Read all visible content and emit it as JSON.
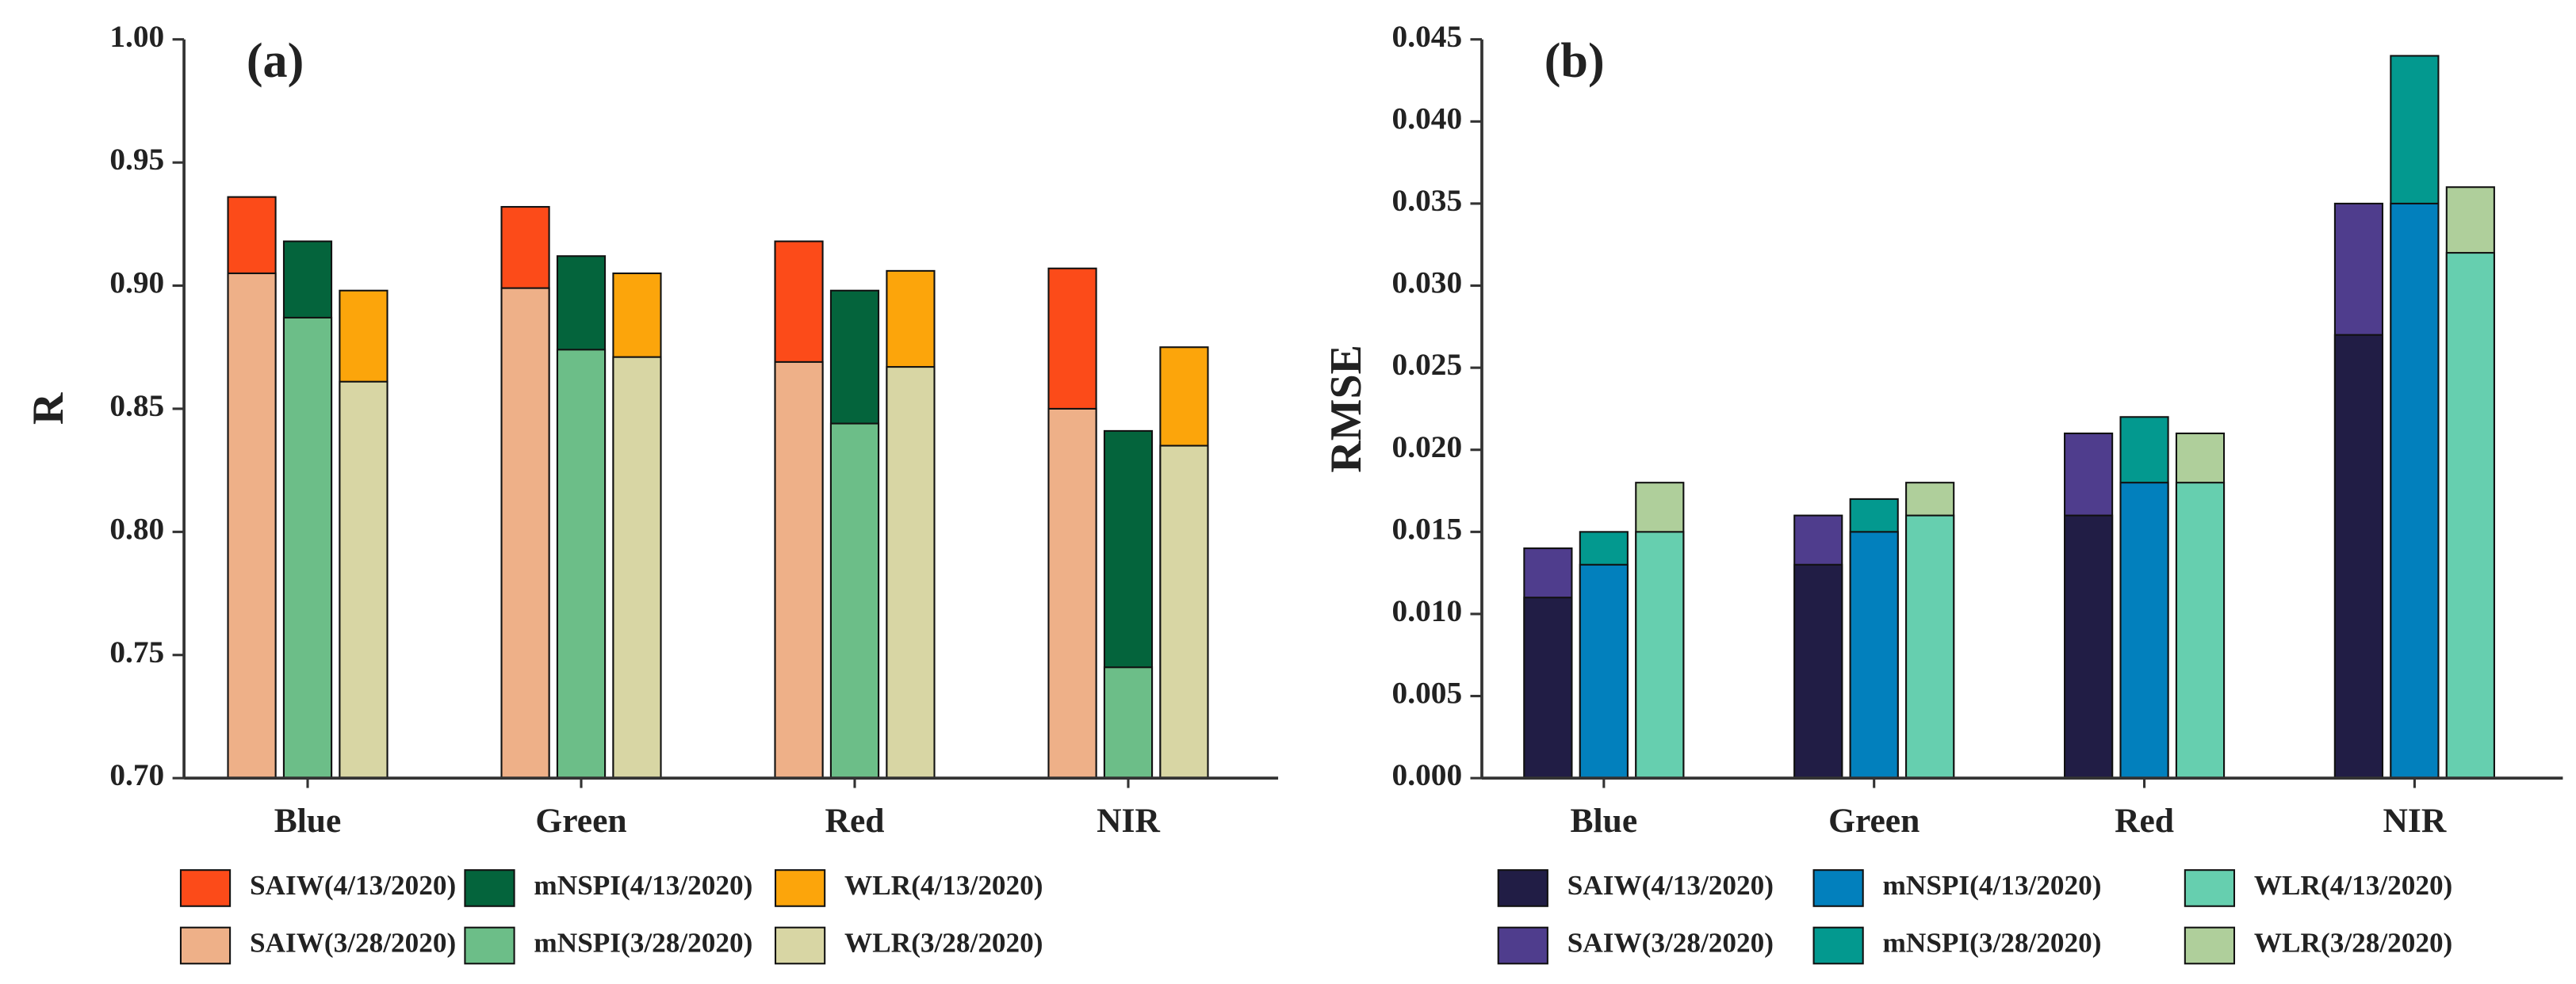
{
  "chart_data": [
    {
      "type": "bar",
      "annotation": "(a)",
      "y_label": "R",
      "categories": [
        "Blue",
        "Green",
        "Red",
        "NIR"
      ],
      "series": [
        {
          "name": "SAIW(4/13/2020)",
          "color": "#fc4b19",
          "values": [
            0.936,
            0.932,
            0.918,
            0.907
          ]
        },
        {
          "name": "SAIW(3/28/2020)",
          "color": "#eeb088",
          "values": [
            0.905,
            0.899,
            0.869,
            0.85
          ]
        },
        {
          "name": "mNSPI(4/13/2020)",
          "color": "#04643c",
          "values": [
            0.918,
            0.912,
            0.898,
            0.841
          ]
        },
        {
          "name": "mNSPI(3/28/2020)",
          "color": "#6cbe88",
          "values": [
            0.887,
            0.874,
            0.844,
            0.745
          ]
        },
        {
          "name": "WLR(4/13/2020)",
          "color": "#fca50b",
          "values": [
            0.898,
            0.905,
            0.906,
            0.875
          ]
        },
        {
          "name": "WLR(3/28/2020)",
          "color": "#d8d6a4",
          "values": [
            0.861,
            0.871,
            0.867,
            0.835
          ]
        }
      ],
      "ylim": [
        0.7,
        1.0
      ],
      "yticks": [
        {
          "value": 0.7,
          "label": "0.70"
        },
        0.75,
        {
          "value": 0.8,
          "label": "0.80"
        },
        0.85,
        {
          "value": 0.9,
          "label": "0.90"
        },
        0.95,
        {
          "value": 1.0,
          "label": "1.00"
        }
      ]
    },
    {
      "type": "bar",
      "annotation": "(b)",
      "y_label": "RMSE",
      "categories": [
        "Blue",
        "Green",
        "Red",
        "NIR"
      ],
      "series": [
        {
          "name": "SAIW(4/13/2020)",
          "color": "#211d45",
          "values": [
            0.011,
            0.013,
            0.016,
            0.027
          ]
        },
        {
          "name": "SAIW(3/28/2020)",
          "color": "#4f3d8d",
          "values": [
            0.014,
            0.016,
            0.021,
            0.035
          ]
        },
        {
          "name": "mNSPI(4/13/2020)",
          "color": "#0280bd",
          "values": [
            0.013,
            0.015,
            0.018,
            0.035
          ]
        },
        {
          "name": "mNSPI(3/28/2020)",
          "color": "#03998f",
          "values": [
            0.015,
            0.017,
            0.022,
            0.044
          ]
        },
        {
          "name": "WLR(4/13/2020)",
          "color": "#66cfaf",
          "values": [
            0.015,
            0.016,
            0.018,
            0.032
          ]
        },
        {
          "name": "WLR(3/28/2020)",
          "color": "#afcf9b",
          "values": [
            0.018,
            0.018,
            0.021,
            0.036
          ]
        }
      ],
      "ylim": [
        0.0,
        0.045
      ],
      "yticks": [
        {
          "value": 0.0,
          "label": "0.000"
        },
        0.005,
        {
          "value": 0.01,
          "label": "0.010"
        },
        0.015,
        {
          "value": 0.02,
          "label": "0.020"
        },
        0.025,
        {
          "value": 0.03,
          "label": "0.030"
        },
        0.035,
        {
          "value": 0.04,
          "label": "0.040"
        },
        0.045
      ]
    }
  ]
}
